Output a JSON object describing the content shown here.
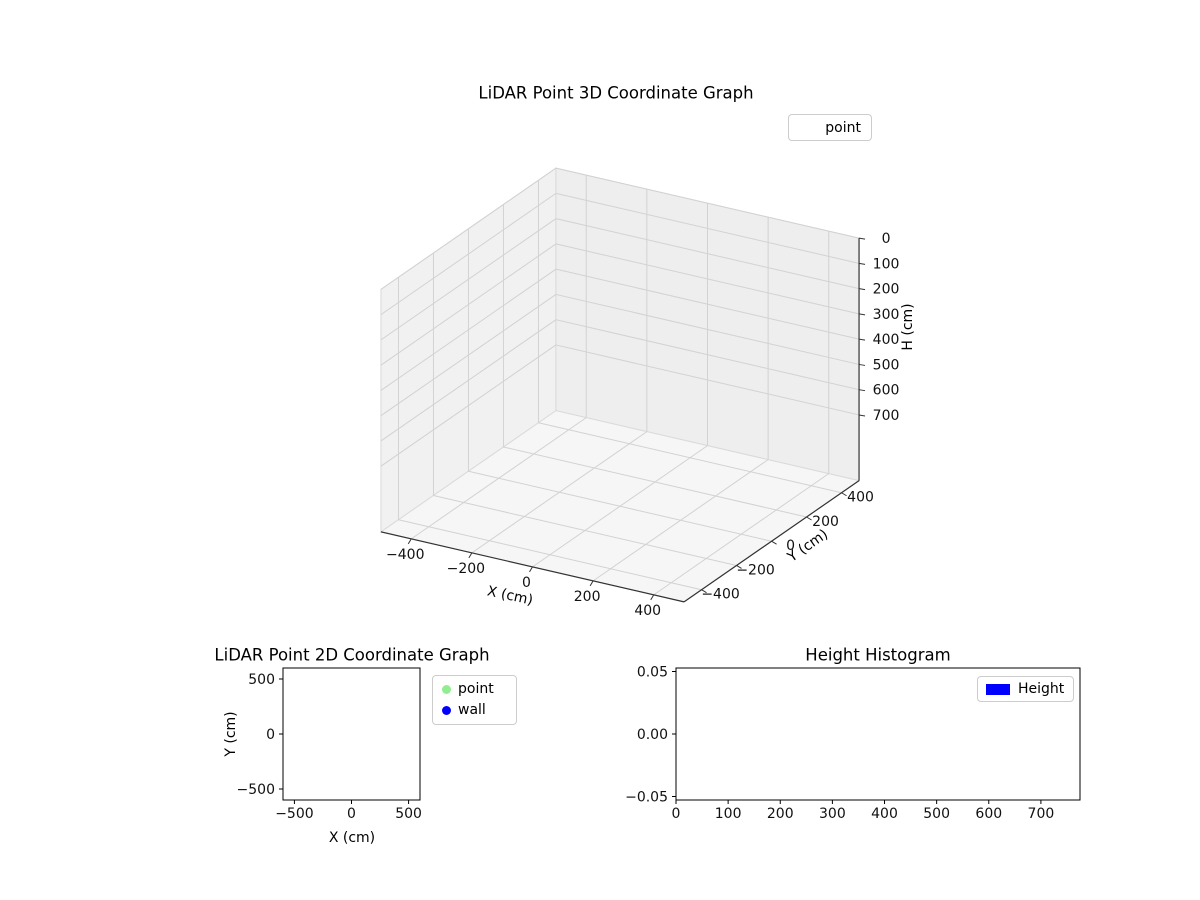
{
  "figure": {
    "background": "#ffffff"
  },
  "chart_data": [
    {
      "id": "lidar-3d",
      "type": "scatter3d",
      "title": "LiDAR Point 3D Coordinate Graph",
      "xlabel": "X (cm)",
      "ylabel": "Y (cm)",
      "zlabel": "H (cm)",
      "xlim": [
        -500,
        500
      ],
      "ylim": [
        -500,
        500
      ],
      "zlim": [
        0,
        960
      ],
      "zaxis_inverted": true,
      "grid": true,
      "xticks": [
        -400,
        -200,
        0,
        200,
        400
      ],
      "xtick_labels": [
        "−400",
        "−200",
        "0",
        "200",
        "400"
      ],
      "yticks": [
        -400,
        -200,
        0,
        200,
        400
      ],
      "ytick_labels": [
        "−400",
        "−200",
        "0",
        "200",
        "400"
      ],
      "zticks": [
        0,
        100,
        200,
        300,
        400,
        500,
        600,
        700
      ],
      "ztick_labels": [
        "0",
        "100",
        "200",
        "300",
        "400",
        "500",
        "600",
        "700"
      ],
      "legend": [
        {
          "label": "point"
        }
      ],
      "series": [
        {
          "name": "point",
          "points": []
        }
      ]
    },
    {
      "id": "lidar-2d",
      "type": "scatter",
      "title": "LiDAR Point 2D Coordinate Graph",
      "xlabel": "X (cm)",
      "ylabel": "Y (cm)",
      "xlim": [
        -600,
        600
      ],
      "ylim": [
        -600,
        600
      ],
      "grid": false,
      "xticks": [
        -500,
        0,
        500
      ],
      "xtick_labels": [
        "−500",
        "0",
        "500"
      ],
      "yticks": [
        500,
        0,
        -500
      ],
      "ytick_labels": [
        "500",
        "0",
        "−500"
      ],
      "legend": [
        {
          "label": "point",
          "color": "#90ee90",
          "marker": "circle"
        },
        {
          "label": "wall",
          "color": "#0000ff",
          "marker": "circle"
        }
      ],
      "series": [
        {
          "name": "point",
          "color": "#90ee90",
          "points": []
        },
        {
          "name": "wall",
          "color": "#0000ff",
          "points": []
        }
      ]
    },
    {
      "id": "height-histogram",
      "type": "bar",
      "title": "Height Histogram",
      "xlabel": "",
      "ylabel": "",
      "xlim": [
        0,
        775
      ],
      "ylim": [
        -0.0528,
        0.0528
      ],
      "grid": false,
      "xticks": [
        0,
        100,
        200,
        300,
        400,
        500,
        600,
        700
      ],
      "xtick_labels": [
        "0",
        "100",
        "200",
        "300",
        "400",
        "500",
        "600",
        "700"
      ],
      "yticks": [
        0.05,
        0,
        -0.05
      ],
      "ytick_labels": [
        "0.05",
        "0.00",
        "−0.05"
      ],
      "legend": [
        {
          "label": "Height",
          "color": "#0000ff",
          "marker": "rect"
        }
      ],
      "series": [
        {
          "name": "Height",
          "color": "#0000ff",
          "values": []
        }
      ]
    }
  ]
}
